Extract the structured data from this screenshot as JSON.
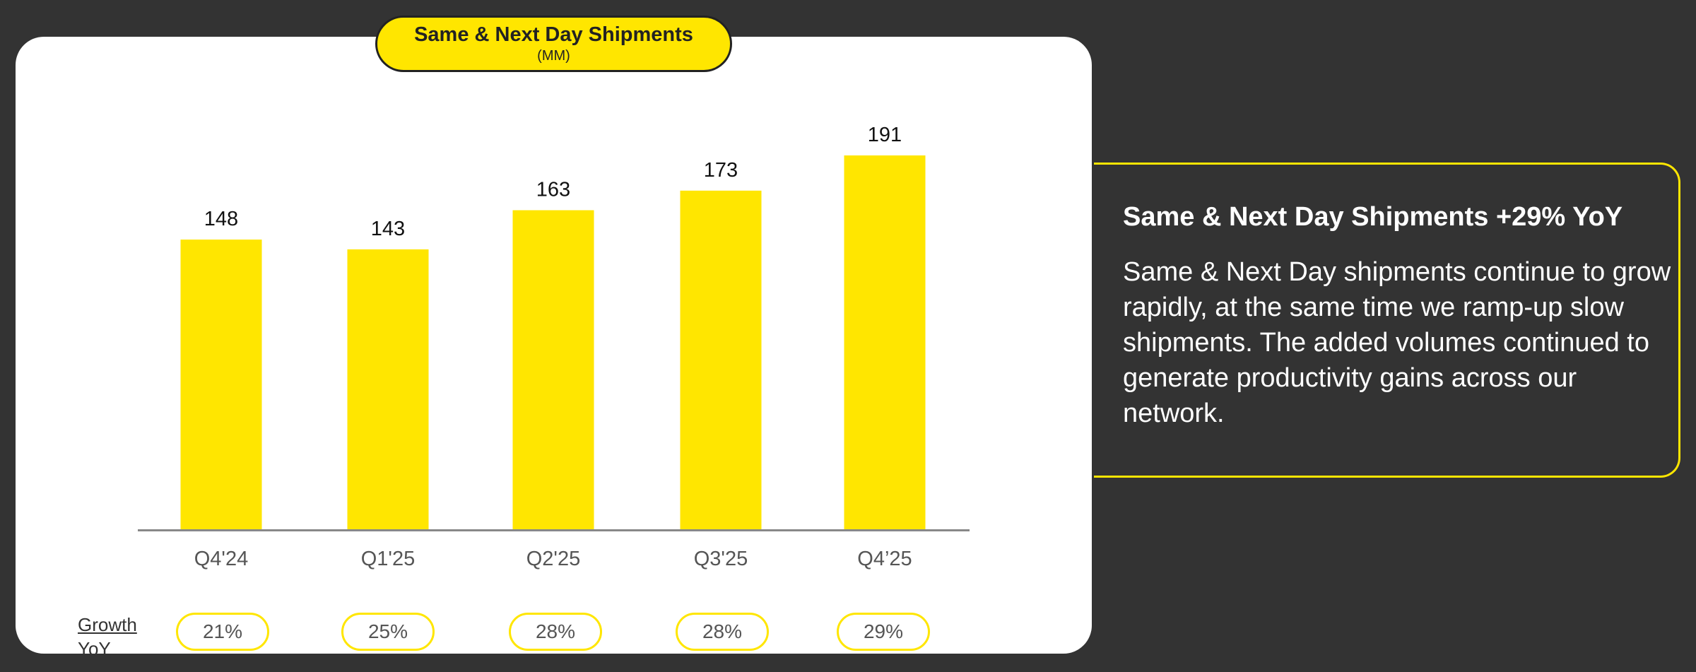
{
  "chart_data": {
    "type": "bar",
    "title": "Same & Next Day Shipments",
    "subtitle": "(MM)",
    "categories": [
      "Q4'24",
      "Q1'25",
      "Q2'25",
      "Q3'25",
      "Q4’25"
    ],
    "values": [
      148,
      143,
      163,
      173,
      191
    ],
    "data_labels": [
      "148",
      "143",
      "163",
      "173",
      "191"
    ],
    "xlabel": "",
    "ylabel": "",
    "ylim": [
      0,
      200
    ],
    "grid": false,
    "growth_label": [
      "Growth",
      "YoY"
    ],
    "growth_yoy": [
      "21%",
      "25%",
      "28%",
      "28%",
      "29%"
    ],
    "bar_color": "#FFE600"
  },
  "panel": {
    "title": "Same & Next Day Shipments +29% YoY",
    "body": "Same & Next Day shipments continue to grow rapidly, at the same time we ramp-up slow shipments. The added volumes continued to generate productivity gains across our network."
  },
  "colors": {
    "background": "#333333",
    "card": "#ffffff",
    "accent": "#FFE600"
  }
}
